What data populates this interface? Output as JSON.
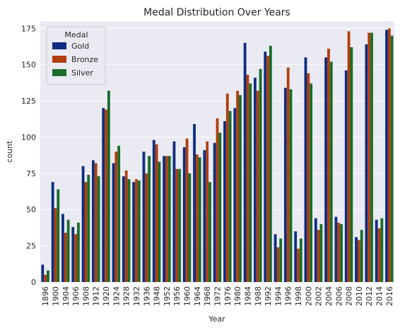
{
  "chart_data": {
    "type": "bar",
    "title": "Medal Distribution Over Years",
    "xlabel": "Year",
    "ylabel": "count",
    "ylim": [
      0,
      180
    ],
    "yticks": [
      0,
      25,
      50,
      75,
      100,
      125,
      150,
      175
    ],
    "grid": true,
    "legend": {
      "title": "Medal",
      "placement": "top-left"
    },
    "categories": [
      "1896",
      "1900",
      "1904",
      "1906",
      "1908",
      "1912",
      "1920",
      "1924",
      "1928",
      "1932",
      "1936",
      "1948",
      "1952",
      "1956",
      "1960",
      "1964",
      "1968",
      "1972",
      "1976",
      "1980",
      "1984",
      "1988",
      "1992",
      "1994",
      "1996",
      "1998",
      "2000",
      "2002",
      "2004",
      "2006",
      "2008",
      "2010",
      "2012",
      "2014",
      "2016"
    ],
    "series": [
      {
        "name": "Gold",
        "color": "#0f2d80",
        "values": [
          12,
          69,
          47,
          38,
          80,
          84,
          120,
          82,
          73,
          69,
          90,
          98,
          87,
          97,
          93,
          109,
          91,
          96,
          111,
          120,
          165,
          141,
          159,
          33,
          134,
          35,
          155,
          44,
          155,
          45,
          146,
          31,
          164,
          43,
          174
        ]
      },
      {
        "name": "Bronze",
        "color": "#b03f0f",
        "values": [
          5,
          51,
          34,
          33,
          69,
          82,
          119,
          90,
          77,
          71,
          75,
          95,
          87,
          78,
          99,
          88,
          97,
          113,
          130,
          132,
          143,
          132,
          156,
          24,
          148,
          23,
          144,
          36,
          161,
          41,
          173,
          29,
          172,
          37,
          175
        ]
      },
      {
        "name": "Silver",
        "color": "#1a6e2a",
        "values": [
          8,
          64,
          43,
          41,
          74,
          73,
          132,
          94,
          71,
          70,
          87,
          83,
          87,
          78,
          75,
          86,
          69,
          103,
          118,
          129,
          137,
          147,
          163,
          30,
          133,
          30,
          137,
          40,
          152,
          40,
          162,
          36,
          172,
          44,
          170
        ]
      }
    ]
  }
}
